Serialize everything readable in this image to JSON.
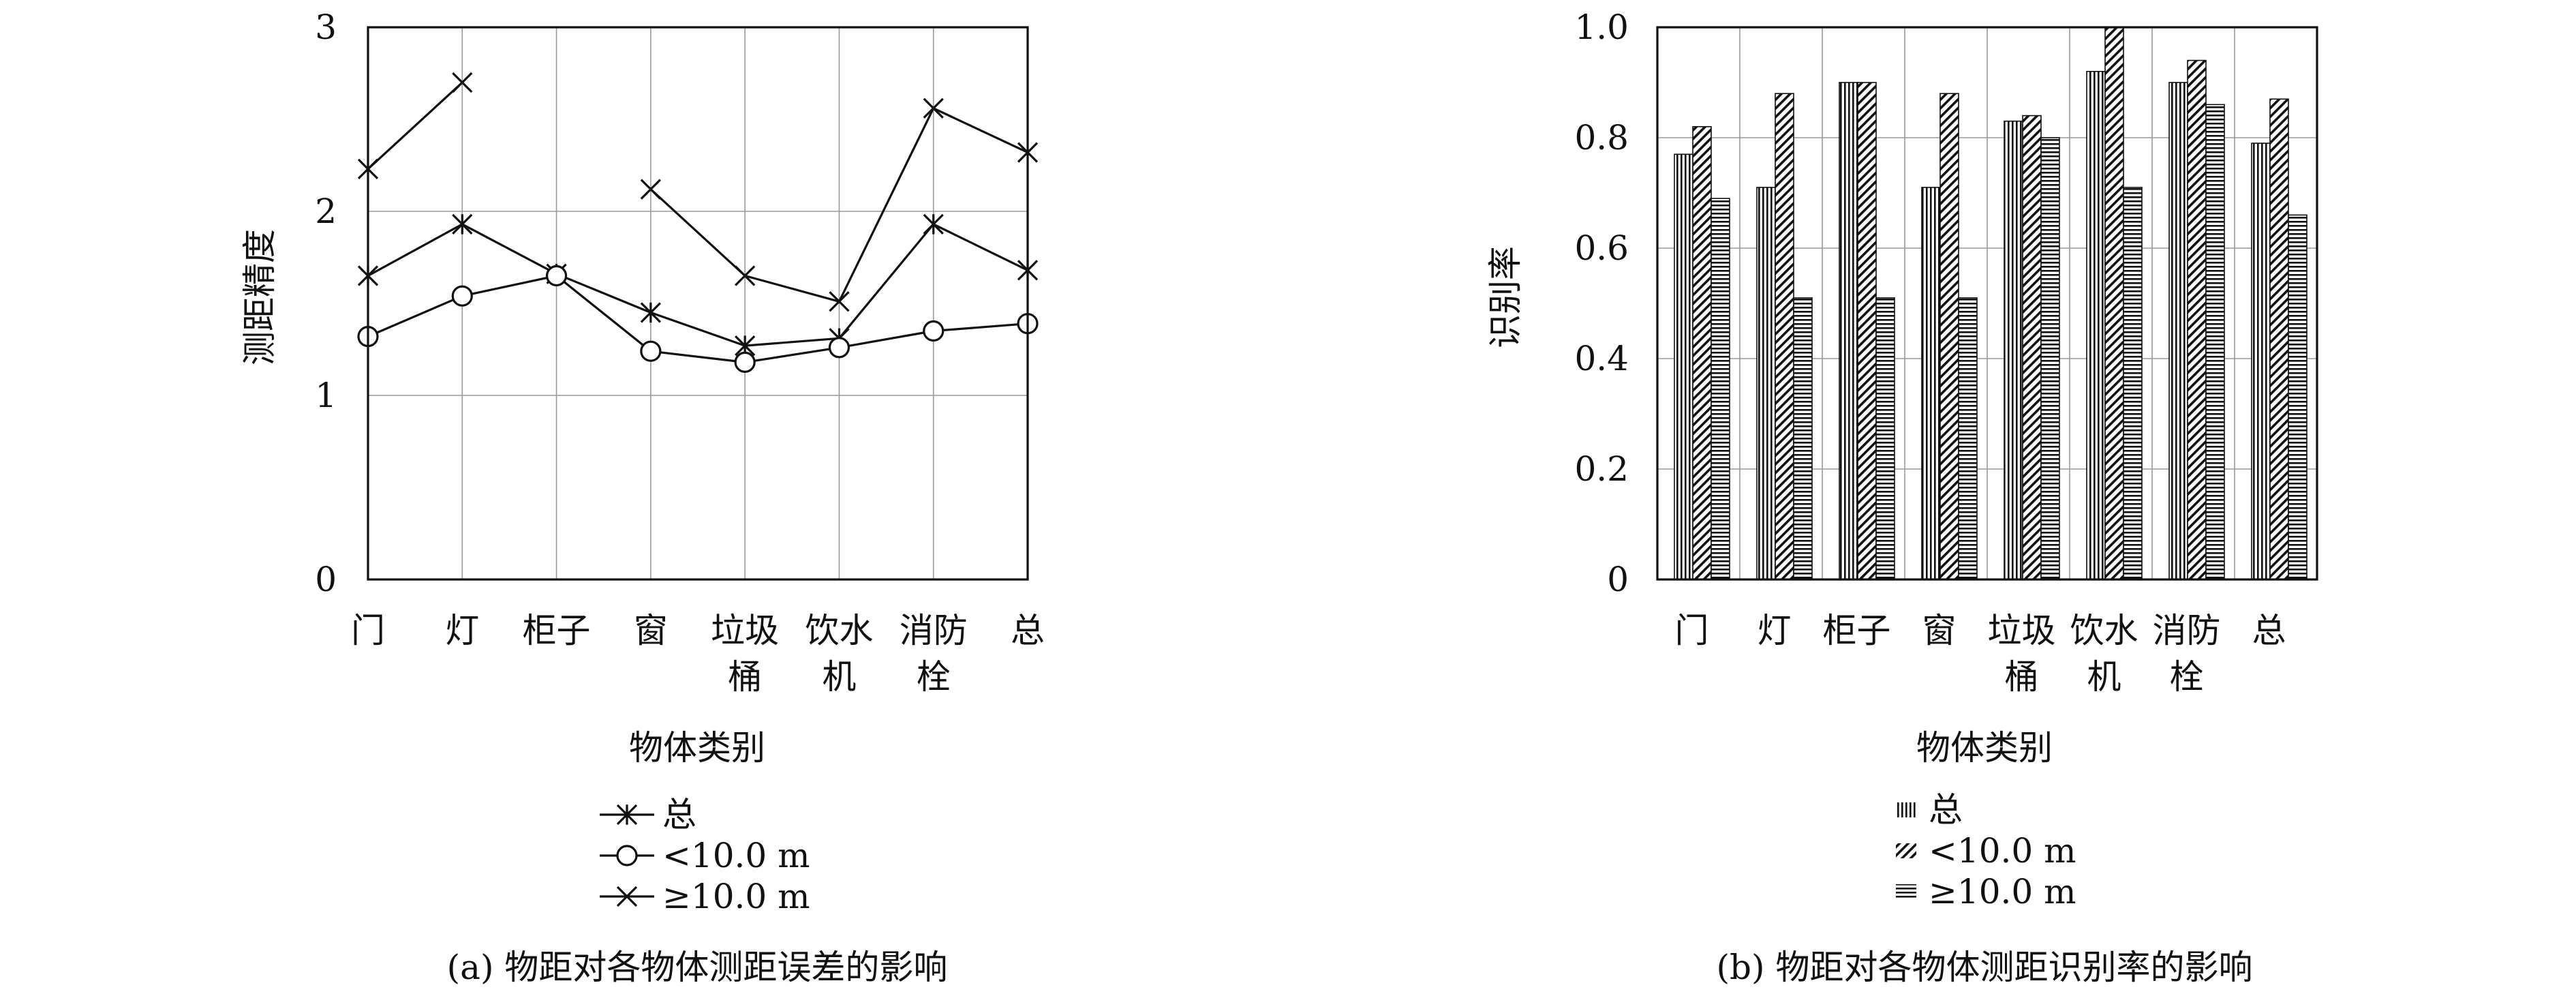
{
  "chart_data": [
    {
      "type": "line",
      "categories": [
        [
          "门"
        ],
        [
          "灯"
        ],
        [
          "柜子"
        ],
        [
          "窗"
        ],
        [
          "垃圾",
          "桶"
        ],
        [
          "饮水",
          "机"
        ],
        [
          "消防",
          "栓"
        ],
        [
          "总"
        ]
      ],
      "ylabel": "测距精度",
      "xlabel": "物体类别",
      "ylim": [
        0,
        3
      ],
      "yticks": [
        "0",
        "1",
        "2",
        "3"
      ],
      "grid": true,
      "legend_position": "below",
      "series": [
        {
          "name": "总",
          "marker": "asterisk",
          "values": [
            1.65,
            1.93,
            1.66,
            1.45,
            1.27,
            1.31,
            1.93,
            1.68
          ]
        },
        {
          "name": "<10.0 m",
          "marker": "circle",
          "values": [
            1.32,
            1.54,
            1.65,
            1.24,
            1.18,
            1.26,
            1.35,
            1.39
          ]
        },
        {
          "name": "≥10.0 m",
          "marker": "cross",
          "values": [
            2.23,
            2.7,
            null,
            2.12,
            1.65,
            1.51,
            2.56,
            2.32
          ]
        }
      ],
      "caption": "(a) 物距对各物体测距误差的影响"
    },
    {
      "type": "bar",
      "categories": [
        [
          "门"
        ],
        [
          "灯"
        ],
        [
          "柜子"
        ],
        [
          "窗"
        ],
        [
          "垃圾",
          "桶"
        ],
        [
          "饮水",
          "机"
        ],
        [
          "消防",
          "栓"
        ],
        [
          "总"
        ]
      ],
      "ylabel": "识别率",
      "xlabel": "物体类别",
      "ylim": [
        0,
        1.0
      ],
      "yticks": [
        "0",
        "0.2",
        "0.4",
        "0.6",
        "0.8",
        "1.0"
      ],
      "grid": true,
      "legend_position": "below",
      "series": [
        {
          "name": "总",
          "pattern": "vertical",
          "values": [
            0.77,
            0.71,
            0.9,
            0.71,
            0.83,
            0.92,
            0.9,
            0.79
          ]
        },
        {
          "name": "<10.0 m",
          "pattern": "diagonal",
          "values": [
            0.82,
            0.88,
            0.9,
            0.88,
            0.84,
            1.0,
            0.94,
            0.87
          ]
        },
        {
          "name": "≥10.0 m",
          "pattern": "horizontal",
          "values": [
            0.69,
            0.51,
            0.51,
            0.51,
            0.8,
            0.71,
            0.86,
            0.66
          ]
        }
      ],
      "caption": "(b) 物距对各物体测距识别率的影响"
    }
  ]
}
